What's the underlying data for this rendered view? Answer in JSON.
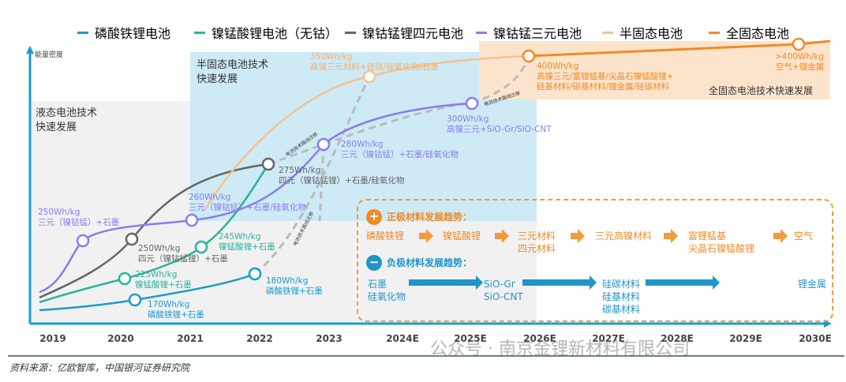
{
  "legend": [
    {
      "label": "磷酸铁锂电池",
      "color": "#1a9bd0"
    },
    {
      "label": "镍锰酸锂电池（无钴）",
      "color": "#2bb39b"
    },
    {
      "label": "镍钴锰锂四元电池",
      "color": "#666666"
    },
    {
      "label": "镍钴锰三元电池",
      "color": "#8a7cf0"
    },
    {
      "label": "半固态电池",
      "color": "#f6c28e"
    },
    {
      "label": "全固态电池",
      "color": "#f28a26"
    }
  ],
  "y_axis_label": "能量密度",
  "x_axis": [
    "2019",
    "2020",
    "2021",
    "2022",
    "2023",
    "2024E",
    "2025E",
    "2026E",
    "2027E",
    "2028E",
    "2029E",
    "2030E"
  ],
  "regions": {
    "liquid": "液态电池技术\n快速发展",
    "semi": "半固态电池技术\n快速发展",
    "solid": "全固态电池技术快速发展"
  },
  "nodes": [
    {
      "value": "250Wh/kg",
      "desc": "三元（镍钴锰）+石墨"
    },
    {
      "value": "250Wh/kg",
      "desc": "四元（镍钴锰锂）+石墨"
    },
    {
      "value": "225Wh/kg",
      "desc": "镍锰酸锂+石墨"
    },
    {
      "value": "170Wh/kg",
      "desc": "磷酸铁锂+石墨"
    },
    {
      "value": "260Wh/kg",
      "desc": "三元（镍钴锰）+石墨/硅氧化物"
    },
    {
      "value": "245Wh/kg",
      "desc": "镍锰酸锂+石墨"
    },
    {
      "value": "275Wh/kg",
      "desc": "四元（镍钴锰锂）+石墨/硅氧化物"
    },
    {
      "value": "180Wh/kg",
      "desc": "磷酸铁锂+石墨"
    },
    {
      "value": "280Wh/kg",
      "desc": "三元（镍钴锰）+石墨/硅氧化物"
    },
    {
      "value": "350Wh/kg",
      "desc": "高镍三元材料+硅碳/硅氧化物/石墨"
    },
    {
      "value": "300Wh/kg",
      "desc": "高镍三元+SiO-Gr/SiO-CNT"
    },
    {
      "value": "400Wh/kg",
      "desc": "高镍三元/富锂锰基/尖晶石镍锰酸锂+\n硅基材料/碳基材料/锂金属/硅碳材料"
    },
    {
      "value": ">400Wh/kg",
      "desc": "空气+锂金属"
    }
  ],
  "migration_label": "电池技术路线迁移",
  "trends": {
    "cathode_title": "正极材料发展趋势：",
    "cathode": [
      "磷酸铁锂",
      "镍锰酸锂",
      "三元材料\n四元材料",
      "三元高镍材料",
      "富锂锰基\n尖晶石镍锰酸锂",
      "空气"
    ],
    "anode_title": "负极材料发展趋势：",
    "anode": [
      "石墨\n硅氧化物",
      "SiO-Gr\nSiO-CNT",
      "硅碳材料\n硅基材料\n碳基材料",
      "锂金属"
    ]
  },
  "source": "资料来源：亿欧智库，中国银河证券研究院",
  "watermark": "公众号 · 南京金锂新材料有限公司"
}
